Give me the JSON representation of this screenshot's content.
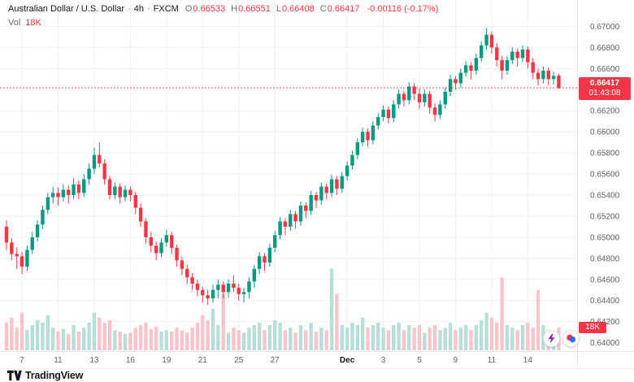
{
  "header": {
    "symbol": "Australian Dollar / U.S. Dollar",
    "separator": "·",
    "interval": "4h",
    "exchange": "FXCM",
    "ohlc": {
      "o_label": "O",
      "o_value": "0.66533",
      "h_label": "H",
      "h_value": "0.66551",
      "l_label": "L",
      "l_value": "0.66408",
      "c_label": "C",
      "c_value": "0.66417",
      "change_value": "-0.00116 (-0.17%)"
    },
    "volume": {
      "label": "Vol",
      "value": "18K"
    }
  },
  "last_price": {
    "display": "0.66417",
    "countdown": "01:43:08",
    "value": 0.66417
  },
  "volume_badge": {
    "text": "18K",
    "value": 18
  },
  "price_axis": {
    "labels": [
      "0.67000",
      "0.66800",
      "0.66600",
      "0.66400",
      "0.66200",
      "0.66000",
      "0.65800",
      "0.65600",
      "0.65400",
      "0.65200",
      "0.65000",
      "0.64800",
      "0.64600",
      "0.64400",
      "0.64200",
      "0.64000"
    ]
  },
  "time_axis": {
    "labels": [
      {
        "text": "7",
        "index": 3
      },
      {
        "text": "11",
        "index": 10
      },
      {
        "text": "13",
        "index": 17
      },
      {
        "text": "16",
        "index": 24
      },
      {
        "text": "19",
        "index": 31
      },
      {
        "text": "21",
        "index": 38
      },
      {
        "text": "25",
        "index": 45
      },
      {
        "text": "27",
        "index": 52
      },
      {
        "text": "Dec",
        "index": 66,
        "emphasis": true
      },
      {
        "text": "3",
        "index": 73
      },
      {
        "text": "5",
        "index": 80
      },
      {
        "text": "9",
        "index": 87
      },
      {
        "text": "11",
        "index": 94
      },
      {
        "text": "14",
        "index": 101
      }
    ]
  },
  "footer": {
    "brand": "TradingView"
  },
  "colors": {
    "up": "#089981",
    "down": "#f23645",
    "up_volume": "#b7dfd8",
    "down_volume": "#f9c4ca",
    "grid": "#eef1f8",
    "axis_text": "#5d606b",
    "axis_text_strong": "#131722",
    "border": "#e0e3eb",
    "badge": "#f23645",
    "price_line": "#f23645"
  },
  "chart_data": {
    "type": "candlestick",
    "title": "Australian Dollar / U.S. Dollar, 4h, FXCM — candlesticks with volume",
    "symbol": "AUD/USD",
    "interval": "4h",
    "exchange": "FXCM",
    "last_ohlc": {
      "open": 0.66533,
      "high": 0.66551,
      "low": 0.66408,
      "close": 0.66417,
      "change": -0.00116,
      "change_pct": -0.17
    },
    "price_range": [
      0.6392,
      0.6725
    ],
    "ylim_labeled": [
      0.64,
      0.67
    ],
    "volume_unit": "K",
    "volume_scale_max": 68,
    "candle_format": [
      "open",
      "high",
      "low",
      "close",
      "volume_k"
    ],
    "price_unit_note": "prices stored as pips*10000; divide by 10000",
    "candles_pips": [
      [
        6510,
        6516,
        6488,
        6495,
        22
      ],
      [
        6495,
        6499,
        6478,
        6484,
        26
      ],
      [
        6484,
        6490,
        6470,
        6482,
        18
      ],
      [
        6482,
        6486,
        6465,
        6472,
        30
      ],
      [
        6472,
        6492,
        6468,
        6488,
        16
      ],
      [
        6488,
        6505,
        6484,
        6500,
        20
      ],
      [
        6500,
        6516,
        6496,
        6512,
        24
      ],
      [
        6512,
        6530,
        6508,
        6526,
        22
      ],
      [
        6526,
        6542,
        6522,
        6538,
        28
      ],
      [
        6538,
        6548,
        6532,
        6542,
        18
      ],
      [
        6542,
        6547,
        6530,
        6538,
        15
      ],
      [
        6538,
        6550,
        6534,
        6545,
        17
      ],
      [
        6545,
        6549,
        6532,
        6540,
        13
      ],
      [
        6540,
        6556,
        6536,
        6550,
        20
      ],
      [
        6550,
        6554,
        6536,
        6542,
        15
      ],
      [
        6542,
        6560,
        6538,
        6555,
        18
      ],
      [
        6555,
        6570,
        6550,
        6565,
        22
      ],
      [
        6565,
        6585,
        6560,
        6578,
        30
      ],
      [
        6578,
        6590,
        6566,
        6570,
        26
      ],
      [
        6570,
        6574,
        6550,
        6555,
        22
      ],
      [
        6555,
        6558,
        6536,
        6540,
        24
      ],
      [
        6540,
        6552,
        6536,
        6548,
        16
      ],
      [
        6548,
        6551,
        6532,
        6538,
        15
      ],
      [
        6538,
        6549,
        6534,
        6545,
        13
      ],
      [
        6545,
        6548,
        6534,
        6540,
        14
      ],
      [
        6540,
        6543,
        6522,
        6528,
        18
      ],
      [
        6528,
        6532,
        6510,
        6515,
        20
      ],
      [
        6515,
        6518,
        6494,
        6500,
        22
      ],
      [
        6500,
        6505,
        6486,
        6492,
        17
      ],
      [
        6492,
        6496,
        6478,
        6485,
        19
      ],
      [
        6485,
        6499,
        6481,
        6495,
        15
      ],
      [
        6495,
        6507,
        6491,
        6502,
        16
      ],
      [
        6502,
        6505,
        6484,
        6490,
        15
      ],
      [
        6490,
        6493,
        6472,
        6478,
        18
      ],
      [
        6478,
        6482,
        6464,
        6470,
        16
      ],
      [
        6470,
        6474,
        6456,
        6462,
        14
      ],
      [
        6462,
        6466,
        6450,
        6456,
        18
      ],
      [
        6456,
        6460,
        6444,
        6450,
        22
      ],
      [
        6450,
        6453,
        6438,
        6445,
        28
      ],
      [
        6445,
        6450,
        6436,
        6442,
        24
      ],
      [
        6442,
        6455,
        6438,
        6450,
        33
      ],
      [
        6450,
        6460,
        6442,
        6455,
        20
      ],
      [
        6455,
        6458,
        6442,
        6448,
        45
      ],
      [
        6448,
        6460,
        6443,
        6456,
        14
      ],
      [
        6456,
        6464,
        6448,
        6452,
        18
      ],
      [
        6452,
        6456,
        6440,
        6446,
        16
      ],
      [
        6446,
        6452,
        6438,
        6448,
        14
      ],
      [
        6448,
        6462,
        6442,
        6458,
        18
      ],
      [
        6458,
        6474,
        6452,
        6470,
        20
      ],
      [
        6470,
        6486,
        6465,
        6482,
        22
      ],
      [
        6482,
        6485,
        6468,
        6476,
        16
      ],
      [
        6476,
        6494,
        6472,
        6490,
        20
      ],
      [
        6490,
        6506,
        6486,
        6502,
        24
      ],
      [
        6502,
        6519,
        6498,
        6515,
        22
      ],
      [
        6515,
        6518,
        6502,
        6510,
        16
      ],
      [
        6510,
        6526,
        6506,
        6522,
        18
      ],
      [
        6522,
        6525,
        6508,
        6515,
        14
      ],
      [
        6515,
        6534,
        6511,
        6530,
        20
      ],
      [
        6530,
        6533,
        6518,
        6525,
        16
      ],
      [
        6525,
        6544,
        6521,
        6540,
        22
      ],
      [
        6540,
        6543,
        6528,
        6535,
        15
      ],
      [
        6535,
        6552,
        6531,
        6548,
        18
      ],
      [
        6548,
        6551,
        6536,
        6542,
        16
      ],
      [
        6542,
        6559,
        6538,
        6555,
        65
      ],
      [
        6555,
        6558,
        6540,
        6546,
        45
      ],
      [
        6546,
        6562,
        6542,
        6558,
        20
      ],
      [
        6558,
        6572,
        6554,
        6568,
        18
      ],
      [
        6568,
        6582,
        6564,
        6578,
        22
      ],
      [
        6578,
        6594,
        6574,
        6590,
        20
      ],
      [
        6590,
        6604,
        6586,
        6600,
        26
      ],
      [
        6600,
        6603,
        6586,
        6592,
        18
      ],
      [
        6592,
        6610,
        6588,
        6606,
        20
      ],
      [
        6606,
        6618,
        6602,
        6614,
        22
      ],
      [
        6614,
        6625,
        6610,
        6621,
        18
      ],
      [
        6621,
        6624,
        6608,
        6613,
        16
      ],
      [
        6613,
        6630,
        6609,
        6626,
        20
      ],
      [
        6626,
        6640,
        6622,
        6636,
        22
      ],
      [
        6636,
        6639,
        6624,
        6630,
        16
      ],
      [
        6630,
        6647,
        6626,
        6643,
        20
      ],
      [
        6643,
        6646,
        6630,
        6636,
        18
      ],
      [
        6636,
        6641,
        6622,
        6628,
        20
      ],
      [
        6628,
        6640,
        6624,
        6636,
        14
      ],
      [
        6636,
        6639,
        6617,
        6623,
        18
      ],
      [
        6623,
        6627,
        6610,
        6616,
        20
      ],
      [
        6616,
        6630,
        6612,
        6626,
        16
      ],
      [
        6626,
        6642,
        6622,
        6638,
        18
      ],
      [
        6638,
        6654,
        6634,
        6650,
        22
      ],
      [
        6650,
        6653,
        6640,
        6646,
        16
      ],
      [
        6646,
        6660,
        6642,
        6656,
        18
      ],
      [
        6656,
        6667,
        6652,
        6663,
        20
      ],
      [
        6663,
        6666,
        6650,
        6658,
        16
      ],
      [
        6658,
        6674,
        6654,
        6670,
        20
      ],
      [
        6670,
        6686,
        6666,
        6682,
        24
      ],
      [
        6682,
        6698,
        6678,
        6692,
        30
      ],
      [
        6692,
        6695,
        6674,
        6680,
        26
      ],
      [
        6680,
        6684,
        6662,
        6668,
        22
      ],
      [
        6668,
        6672,
        6650,
        6658,
        58
      ],
      [
        6658,
        6672,
        6654,
        6668,
        20
      ],
      [
        6668,
        6680,
        6664,
        6676,
        18
      ],
      [
        6676,
        6679,
        6662,
        6670,
        16
      ],
      [
        6670,
        6682,
        6666,
        6678,
        20
      ],
      [
        6678,
        6681,
        6660,
        6666,
        22
      ],
      [
        6666,
        6670,
        6650,
        6656,
        18
      ],
      [
        6656,
        6660,
        6644,
        6650,
        48
      ],
      [
        6650,
        6662,
        6646,
        6658,
        20
      ],
      [
        6658,
        6661,
        6644,
        6650,
        16
      ],
      [
        6650,
        6657,
        6645,
        6653,
        14
      ],
      [
        6653.3,
        6655.1,
        6640.8,
        6641.7,
        18
      ]
    ]
  }
}
